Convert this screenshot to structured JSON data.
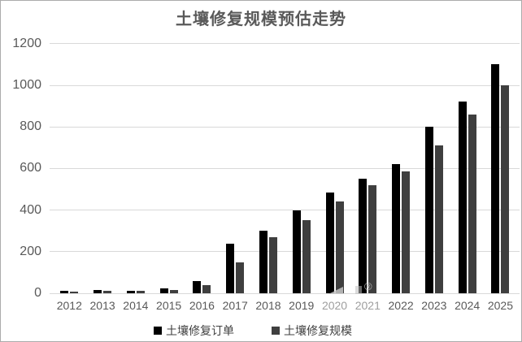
{
  "chart_data": {
    "type": "bar",
    "title": "土壤修复规模预估走势",
    "categories": [
      "2012",
      "2013",
      "2014",
      "2015",
      "2016",
      "2017",
      "2018",
      "2019",
      "2020",
      "2021",
      "2022",
      "2023",
      "2024",
      "2025"
    ],
    "series": [
      {
        "name": "土壤修复订单",
        "color": "#000000",
        "values": [
          10,
          15,
          13,
          22,
          60,
          240,
          300,
          400,
          485,
          550,
          620,
          800,
          920,
          1100
        ]
      },
      {
        "name": "土壤修复规模",
        "color": "#3f3f3f",
        "values": [
          6,
          12,
          12,
          15,
          40,
          150,
          270,
          350,
          440,
          520,
          585,
          710,
          860,
          1000
        ]
      }
    ],
    "xlabel": "",
    "ylabel": "",
    "ylim": [
      0,
      1200
    ],
    "yticks": [
      0,
      200,
      400,
      600,
      800,
      1000,
      1200
    ],
    "grid": true,
    "legend_position": "bottom"
  },
  "watermark": {
    "symbol": "®",
    "faded_x_labels": [
      "2020",
      "2021"
    ]
  },
  "colors": {
    "gridline": "#d9d9d9",
    "axis_label": "#595959",
    "faded_label": "#9e9e9e",
    "title": "#595959",
    "border": "#ababab",
    "background": "#ffffff"
  }
}
